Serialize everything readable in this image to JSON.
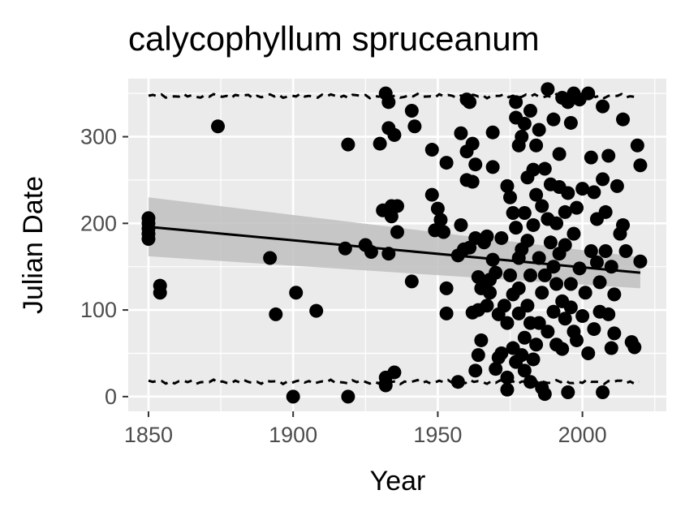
{
  "chart_data": {
    "type": "scatter",
    "title": "calycophyllum spruceanum",
    "xlabel": "Year",
    "ylabel": "Julian Date",
    "xlim": [
      1843,
      2029
    ],
    "ylim": [
      -17,
      367
    ],
    "xticks": [
      1850,
      1900,
      1950,
      2000
    ],
    "yticks": [
      0,
      100,
      200,
      300
    ],
    "grid": true,
    "background": "#ebebeb",
    "point_color": "#000000",
    "points": [
      [
        1850,
        182
      ],
      [
        1850,
        188
      ],
      [
        1850,
        194
      ],
      [
        1850,
        200
      ],
      [
        1850,
        206
      ],
      [
        1854,
        120
      ],
      [
        1854,
        128
      ],
      [
        1874,
        312
      ],
      [
        1892,
        160
      ],
      [
        1894,
        95
      ],
      [
        1900,
        0
      ],
      [
        1901,
        120
      ],
      [
        1908,
        99
      ],
      [
        1918,
        171
      ],
      [
        1919,
        0
      ],
      [
        1919,
        291
      ],
      [
        1925,
        175
      ],
      [
        1927,
        167
      ],
      [
        1930,
        292
      ],
      [
        1931,
        215
      ],
      [
        1932,
        13
      ],
      [
        1932,
        22
      ],
      [
        1932,
        350
      ],
      [
        1933,
        165
      ],
      [
        1933,
        310
      ],
      [
        1933,
        340
      ],
      [
        1934,
        208
      ],
      [
        1934,
        220
      ],
      [
        1935,
        28
      ],
      [
        1935,
        302
      ],
      [
        1936,
        220
      ],
      [
        1936,
        190
      ],
      [
        1941,
        133
      ],
      [
        1941,
        330
      ],
      [
        1942,
        312
      ],
      [
        1948,
        233
      ],
      [
        1948,
        285
      ],
      [
        1949,
        192
      ],
      [
        1950,
        217
      ],
      [
        1951,
        204
      ],
      [
        1952,
        190
      ],
      [
        1953,
        125
      ],
      [
        1953,
        96
      ],
      [
        1953,
        270
      ],
      [
        1957,
        17
      ],
      [
        1957,
        163
      ],
      [
        1958,
        198
      ],
      [
        1958,
        304
      ],
      [
        1959,
        170
      ],
      [
        1960,
        250
      ],
      [
        1960,
        283
      ],
      [
        1960,
        343
      ],
      [
        1961,
        172
      ],
      [
        1961,
        340
      ],
      [
        1962,
        97
      ],
      [
        1962,
        248
      ],
      [
        1962,
        292
      ],
      [
        1963,
        30
      ],
      [
        1963,
        183
      ],
      [
        1963,
        268
      ],
      [
        1964,
        48
      ],
      [
        1964,
        138
      ],
      [
        1964,
        100
      ],
      [
        1965,
        65
      ],
      [
        1965,
        125
      ],
      [
        1966,
        178
      ],
      [
        1967,
        105
      ],
      [
        1967,
        185
      ],
      [
        1968,
        120
      ],
      [
        1968,
        135
      ],
      [
        1969,
        158
      ],
      [
        1969,
        305
      ],
      [
        1969,
        265
      ],
      [
        1970,
        32
      ],
      [
        1970,
        143
      ],
      [
        1971,
        45
      ],
      [
        1971,
        95
      ],
      [
        1972,
        50
      ],
      [
        1972,
        183
      ],
      [
        1973,
        105
      ],
      [
        1974,
        8
      ],
      [
        1974,
        22
      ],
      [
        1974,
        85
      ],
      [
        1974,
        243
      ],
      [
        1975,
        230
      ],
      [
        1975,
        140
      ],
      [
        1976,
        56
      ],
      [
        1976,
        118
      ],
      [
        1976,
        212
      ],
      [
        1977,
        322
      ],
      [
        1977,
        340
      ],
      [
        1977,
        195
      ],
      [
        1977,
        40
      ],
      [
        1978,
        160
      ],
      [
        1978,
        96
      ],
      [
        1978,
        125
      ],
      [
        1978,
        290
      ],
      [
        1979,
        300
      ],
      [
        1979,
        170
      ],
      [
        1979,
        48
      ],
      [
        1980,
        212
      ],
      [
        1980,
        68
      ],
      [
        1980,
        30
      ],
      [
        1980,
        315
      ],
      [
        1981,
        180
      ],
      [
        1981,
        253
      ],
      [
        1981,
        105
      ],
      [
        1982,
        330
      ],
      [
        1982,
        140
      ],
      [
        1982,
        85
      ],
      [
        1982,
        17
      ],
      [
        1983,
        43
      ],
      [
        1983,
        198
      ],
      [
        1983,
        262
      ],
      [
        1984,
        233
      ],
      [
        1984,
        60
      ],
      [
        1984,
        290
      ],
      [
        1985,
        308
      ],
      [
        1985,
        85
      ],
      [
        1985,
        160
      ],
      [
        1986,
        10
      ],
      [
        1986,
        120
      ],
      [
        1986,
        220
      ],
      [
        1987,
        263
      ],
      [
        1987,
        3
      ],
      [
        1987,
        140
      ],
      [
        1988,
        355
      ],
      [
        1988,
        75
      ],
      [
        1988,
        205
      ],
      [
        1989,
        178
      ],
      [
        1989,
        245
      ],
      [
        1990,
        98
      ],
      [
        1990,
        150
      ],
      [
        1990,
        320
      ],
      [
        1991,
        130
      ],
      [
        1991,
        200
      ],
      [
        1991,
        60
      ],
      [
        1992,
        242
      ],
      [
        1992,
        165
      ],
      [
        1992,
        280
      ],
      [
        1993,
        55
      ],
      [
        1993,
        110
      ],
      [
        1993,
        345
      ],
      [
        1994,
        213
      ],
      [
        1994,
        90
      ],
      [
        1994,
        175
      ],
      [
        1995,
        5
      ],
      [
        1995,
        235
      ],
      [
        1995,
        340
      ],
      [
        1996,
        103
      ],
      [
        1996,
        316
      ],
      [
        1996,
        130
      ],
      [
        1997,
        350
      ],
      [
        1997,
        188
      ],
      [
        1997,
        75
      ],
      [
        1998,
        65
      ],
      [
        1998,
        218
      ],
      [
        1999,
        148
      ],
      [
        1999,
        343
      ],
      [
        2000,
        93
      ],
      [
        2000,
        240
      ],
      [
        2001,
        120
      ],
      [
        2002,
        50
      ],
      [
        2002,
        350
      ],
      [
        2003,
        276
      ],
      [
        2003,
        168
      ],
      [
        2004,
        236
      ],
      [
        2004,
        78
      ],
      [
        2005,
        155
      ],
      [
        2005,
        205
      ],
      [
        2006,
        132
      ],
      [
        2006,
        98
      ],
      [
        2007,
        5
      ],
      [
        2007,
        335
      ],
      [
        2007,
        251
      ],
      [
        2008,
        168
      ],
      [
        2008,
        213
      ],
      [
        2009,
        95
      ],
      [
        2009,
        278
      ],
      [
        2010,
        56
      ],
      [
        2010,
        150
      ],
      [
        2011,
        118
      ],
      [
        2011,
        73
      ],
      [
        2012,
        243
      ],
      [
        2013,
        188
      ],
      [
        2014,
        320
      ],
      [
        2014,
        198
      ],
      [
        2015,
        168
      ],
      [
        2017,
        63
      ],
      [
        2018,
        57
      ],
      [
        2019,
        290
      ],
      [
        2020,
        156
      ],
      [
        2020,
        267
      ]
    ],
    "trend": {
      "x": [
        1850,
        2020
      ],
      "y": [
        196,
        143
      ],
      "ci_lower": [
        162,
        125
      ],
      "ci_upper": [
        230,
        161
      ],
      "line_color": "#000000",
      "ribbon_color": "#bfbfbf"
    },
    "dashed_bands": [
      {
        "y": 347,
        "x_from": 1850,
        "x_to": 2020
      },
      {
        "y": 17,
        "x_from": 1850,
        "x_to": 2020
      }
    ]
  }
}
